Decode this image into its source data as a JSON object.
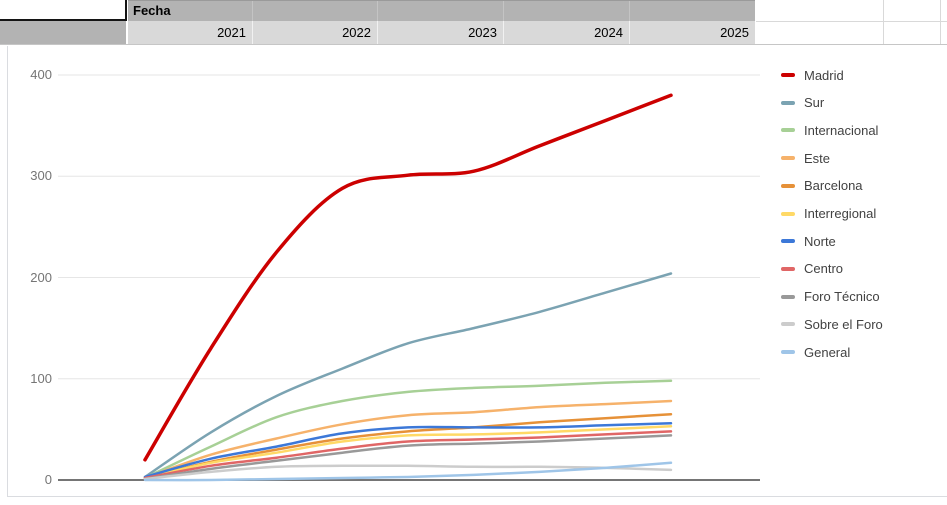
{
  "sheet": {
    "pivot_row_label": "Fecha",
    "years": [
      "2021",
      "2022",
      "2023",
      "2024",
      "2025"
    ]
  },
  "colors": {
    "header_dark_gray": "#b3b3b3",
    "header_light_gray": "#d9d9d9",
    "selection_border": "#141414",
    "gridline": "#e6e6e6",
    "axis_line": "#757575",
    "axis_text": "#757575",
    "legend_text": "#424242"
  },
  "chart_data": {
    "type": "line",
    "smooth": true,
    "grid": true,
    "legend_position": "right",
    "xlabel": "Fecha",
    "ylabel": "",
    "ylim": [
      0,
      400
    ],
    "yticks": [
      0,
      100,
      200,
      300,
      400
    ],
    "x": [
      2021,
      2021.5,
      2022,
      2022.5,
      2023,
      2023.5,
      2024,
      2024.5,
      2025
    ],
    "x_year_ticks": [
      2021,
      2022,
      2023,
      2024,
      2025
    ],
    "series": [
      {
        "name": "Madrid",
        "color": "#cc0000",
        "values": [
          20,
          130,
          225,
          288,
          301,
          305,
          330,
          355,
          380
        ]
      },
      {
        "name": "Sur",
        "color": "#7ba3b2",
        "values": [
          3,
          47,
          83,
          110,
          135,
          150,
          166,
          185,
          204
        ]
      },
      {
        "name": "Internacional",
        "color": "#a7d096",
        "values": [
          2,
          33,
          62,
          78,
          87,
          91,
          93,
          96,
          98
        ]
      },
      {
        "name": "Este",
        "color": "#f6b26b",
        "values": [
          2,
          25,
          41,
          55,
          64,
          67,
          72,
          75,
          78
        ]
      },
      {
        "name": "Barcelona",
        "color": "#e69138",
        "values": [
          2,
          18,
          30,
          41,
          48,
          52,
          57,
          61,
          65
        ]
      },
      {
        "name": "Interregional",
        "color": "#ffd966",
        "values": [
          2,
          17,
          27,
          38,
          44,
          45,
          47,
          50,
          53
        ]
      },
      {
        "name": "Norte",
        "color": "#3c78d8",
        "values": [
          3,
          21,
          33,
          46,
          52,
          52,
          52,
          54,
          56
        ]
      },
      {
        "name": "Centro",
        "color": "#e06666",
        "values": [
          2,
          14,
          22,
          31,
          38,
          40,
          42,
          45,
          48
        ]
      },
      {
        "name": "Foro Técnico",
        "color": "#999999",
        "values": [
          1,
          11,
          19,
          27,
          34,
          36,
          38,
          41,
          44
        ]
      },
      {
        "name": "Sobre el Foro",
        "color": "#cccccc",
        "values": [
          1,
          8,
          13,
          14,
          14,
          13,
          13,
          12,
          10
        ]
      },
      {
        "name": "General",
        "color": "#9fc5e8",
        "values": [
          0,
          0,
          1,
          2,
          3,
          5,
          8,
          12,
          17
        ]
      }
    ]
  }
}
